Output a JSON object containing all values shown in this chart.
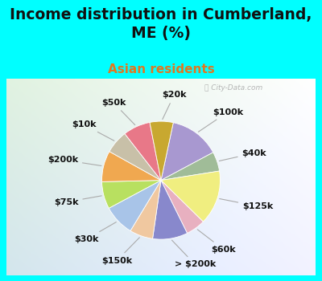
{
  "title": "Income distribution in Cumberland,\nME (%)",
  "subtitle": "Asian residents",
  "title_color": "#111111",
  "subtitle_color": "#e07820",
  "background_color": "#00ffff",
  "watermark": "ⓘ City-Data.com",
  "labels": [
    "$100k",
    "$40k",
    "$125k",
    "$60k",
    "> $200k",
    "$150k",
    "$30k",
    "$75k",
    "$200k",
    "$10k",
    "$50k",
    "$20k"
  ],
  "values": [
    13,
    5,
    14,
    5,
    9,
    6,
    8,
    7,
    8,
    6,
    7,
    6
  ],
  "colors": [
    "#a898d0",
    "#a0bc98",
    "#f0ee80",
    "#e8b0c0",
    "#8888cc",
    "#f0c8a0",
    "#a8c4e8",
    "#b8e060",
    "#f0a850",
    "#c8c0a8",
    "#e87888",
    "#c8a830"
  ],
  "startangle": 78,
  "label_fontsize": 8,
  "title_fontsize": 13.5,
  "subtitle_fontsize": 11
}
